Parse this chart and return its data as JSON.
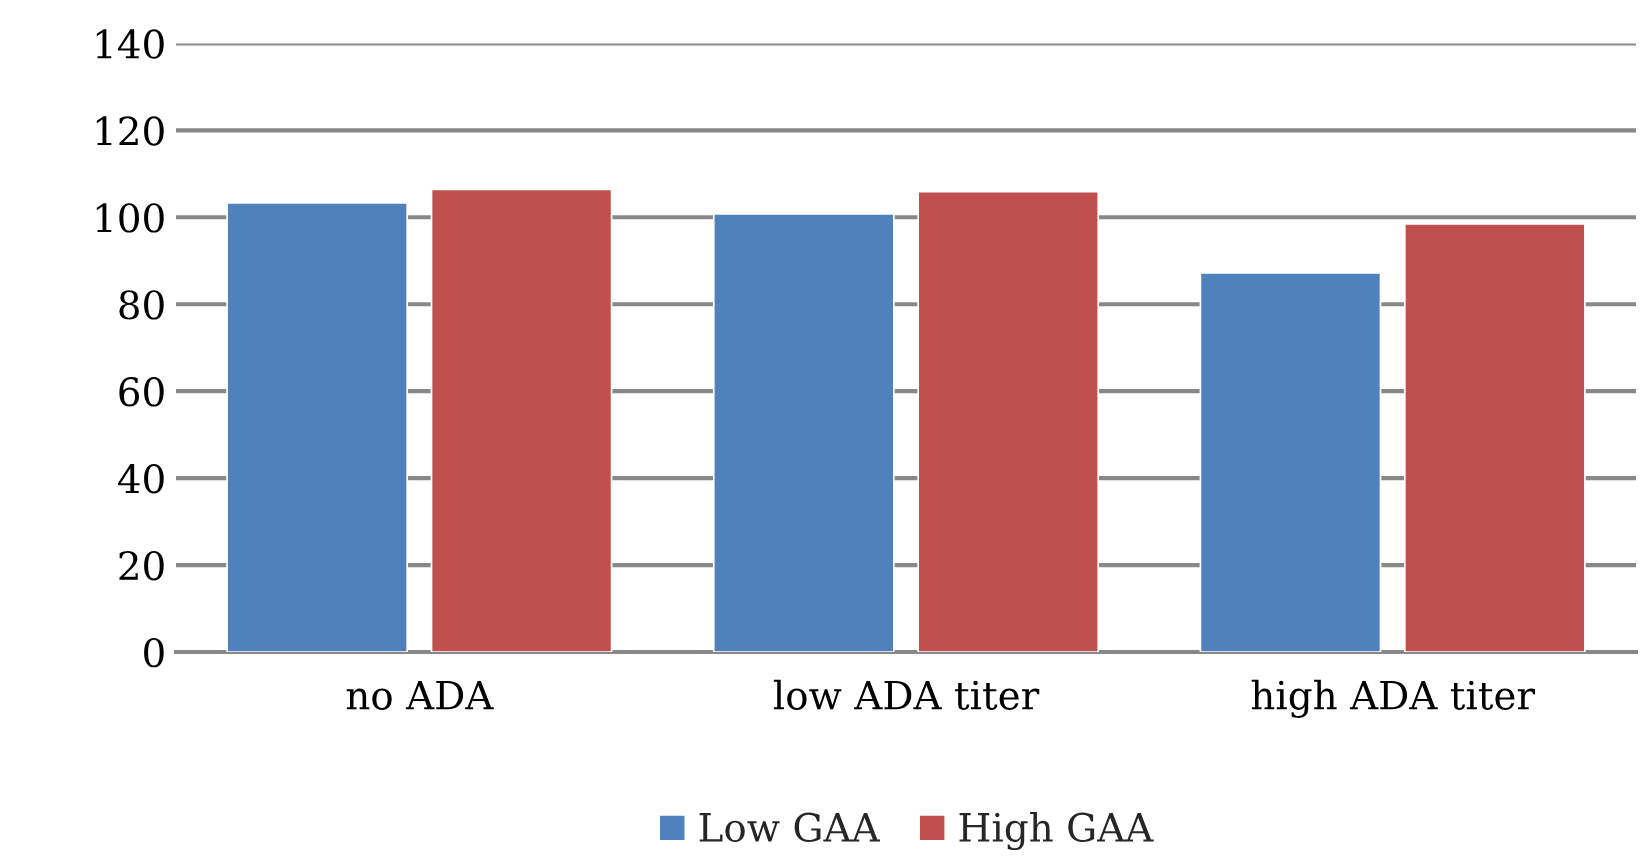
{
  "chart_data": {
    "type": "bar",
    "categories": [
      "no ADA",
      "low ADA titer",
      "high ADA titer"
    ],
    "series": [
      {
        "name": "Low GAA",
        "color": "#4f81bd",
        "values": [
          103.3,
          100.8,
          87.2
        ]
      },
      {
        "name": "High GAA",
        "color": "#c0504d",
        "values": [
          106.4,
          105.9,
          98.5
        ]
      }
    ],
    "ylim": [
      0,
      140
    ],
    "yticks": [
      0,
      20,
      40,
      60,
      80,
      100,
      120,
      140
    ],
    "grid": "y",
    "legend": "bottom"
  }
}
